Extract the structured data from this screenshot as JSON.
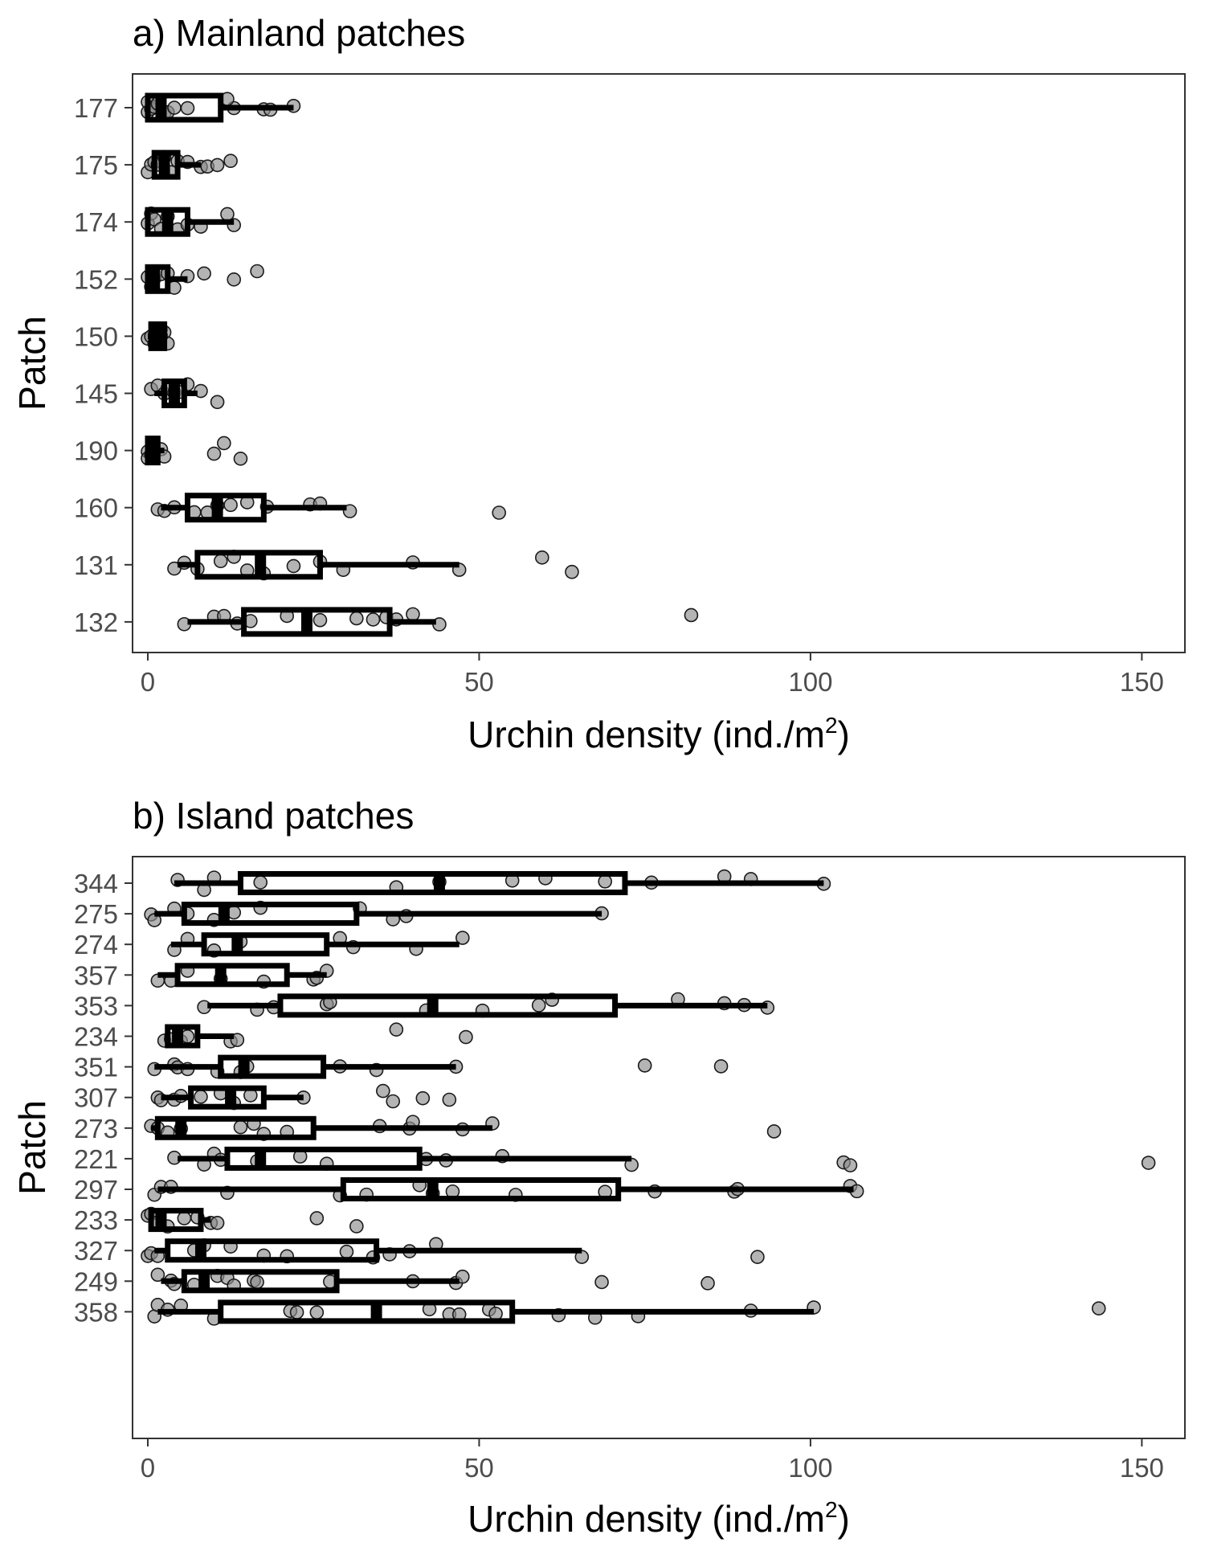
{
  "chart_data": [
    {
      "type": "boxplot",
      "title": "a) Mainland patches",
      "xlabel": "Urchin density (ind./m",
      "xlabel_sup": "2",
      "xlabel_end": ")",
      "ylabel": "Patch",
      "xlim": [
        -2.3,
        156.5
      ],
      "xticks": [
        0,
        50,
        100,
        150
      ],
      "grid": false,
      "categories": [
        "177",
        "175",
        "174",
        "152",
        "150",
        "145",
        "190",
        "160",
        "131",
        "132"
      ],
      "boxes": [
        {
          "patch": "177",
          "whisker_low": 0,
          "q1": 0,
          "median": 2,
          "q3": 11,
          "whisker_high": 22
        },
        {
          "patch": "175",
          "whisker_low": 0.5,
          "q1": 1,
          "median": 2.5,
          "q3": 4.5,
          "whisker_high": 8
        },
        {
          "patch": "174",
          "whisker_low": 0,
          "q1": 0,
          "median": 3,
          "q3": 6,
          "whisker_high": 13
        },
        {
          "patch": "152",
          "whisker_low": 0,
          "q1": 0,
          "median": 1,
          "q3": 3,
          "whisker_high": 6
        },
        {
          "patch": "150",
          "whisker_low": 0,
          "q1": 0.5,
          "median": 1.5,
          "q3": 2.5,
          "whisker_high": 3
        },
        {
          "patch": "145",
          "whisker_low": 1,
          "q1": 2.5,
          "median": 4,
          "q3": 5.5,
          "whisker_high": 7.5
        },
        {
          "patch": "190",
          "whisker_low": 0,
          "q1": 0,
          "median": 0.5,
          "q3": 1.5,
          "whisker_high": 2.5
        },
        {
          "patch": "160",
          "whisker_low": 2,
          "q1": 6,
          "median": 10.5,
          "q3": 17.5,
          "whisker_high": 30
        },
        {
          "patch": "131",
          "whisker_low": 4.5,
          "q1": 7.5,
          "median": 17,
          "q3": 26,
          "whisker_high": 47
        },
        {
          "patch": "132",
          "whisker_low": 6,
          "q1": 14.5,
          "median": 24,
          "q3": 36.5,
          "whisker_high": 43.5
        }
      ],
      "points": [
        [
          0,
          0,
          0.5,
          1,
          1.5,
          2.5,
          3,
          4,
          6,
          13,
          12,
          17.5,
          18.5,
          22
        ],
        [
          0,
          0.5,
          1,
          1.5,
          2.5,
          3.5,
          4.5,
          6,
          8,
          9,
          10.5,
          12.5
        ],
        [
          0,
          0.5,
          1,
          2,
          3,
          4.5,
          6,
          8,
          12,
          13
        ],
        [
          0,
          0.5,
          1,
          2,
          3,
          4,
          6,
          8.5,
          13,
          16.5
        ],
        [
          0,
          0.5,
          1,
          1.5,
          2,
          2.5,
          3
        ],
        [
          0.5,
          1.5,
          2.5,
          3,
          4,
          5,
          6,
          8,
          10.5
        ],
        [
          0,
          0,
          0.5,
          1,
          2,
          2.5,
          10,
          11.5,
          14
        ],
        [
          1.5,
          2.5,
          4,
          7,
          9,
          10.5,
          12.5,
          15,
          18,
          24.5,
          26,
          30.5,
          53
        ],
        [
          4,
          5.5,
          7.5,
          11,
          13,
          15,
          17.5,
          22,
          26,
          29.5,
          40,
          47,
          59.5,
          64
        ],
        [
          5.5,
          10,
          11.5,
          13.5,
          15.5,
          21,
          26,
          31.5,
          34,
          36,
          37.5,
          40,
          44,
          82
        ]
      ]
    },
    {
      "type": "boxplot",
      "title": "b) Island patches",
      "xlabel": "Urchin density (ind./m",
      "xlabel_sup": "2",
      "xlabel_end": ")",
      "ylabel": "Patch",
      "xlim": [
        -2.3,
        156.5
      ],
      "xticks": [
        0,
        50,
        100,
        150
      ],
      "grid": false,
      "categories": [
        "344",
        "275",
        "274",
        "357",
        "353",
        "234",
        "351",
        "307",
        "273",
        "221",
        "297",
        "233",
        "327",
        "249",
        "358"
      ],
      "boxes": [
        {
          "patch": "344",
          "whisker_low": 4,
          "q1": 14,
          "median": 44,
          "q3": 72,
          "whisker_high": 102
        },
        {
          "patch": "275",
          "whisker_low": 1,
          "q1": 5.5,
          "median": 11.5,
          "q3": 31.5,
          "whisker_high": 68.5
        },
        {
          "patch": "274",
          "whisker_low": 3.5,
          "q1": 8.5,
          "median": 13.5,
          "q3": 27,
          "whisker_high": 47
        },
        {
          "patch": "357",
          "whisker_low": 1.5,
          "q1": 4.5,
          "median": 11,
          "q3": 21,
          "whisker_high": 27
        },
        {
          "patch": "353",
          "whisker_low": 9,
          "q1": 20,
          "median": 43,
          "q3": 70.5,
          "whisker_high": 93.5
        },
        {
          "patch": "234",
          "whisker_low": 2.5,
          "q1": 3,
          "median": 4.5,
          "q3": 7.5,
          "whisker_high": 13
        },
        {
          "patch": "351",
          "whisker_low": 1,
          "q1": 11,
          "median": 14.5,
          "q3": 26.5,
          "whisker_high": 46.5
        },
        {
          "patch": "307",
          "whisker_low": 2,
          "q1": 6.5,
          "median": 12.5,
          "q3": 17.5,
          "whisker_high": 23.5
        },
        {
          "patch": "273",
          "whisker_low": 0.5,
          "q1": 1.5,
          "median": 5,
          "q3": 25,
          "whisker_high": 52
        },
        {
          "patch": "221",
          "whisker_low": 4.5,
          "q1": 12,
          "median": 17,
          "q3": 41,
          "whisker_high": 73
        },
        {
          "patch": "297",
          "whisker_low": 1.5,
          "q1": 29.5,
          "median": 43,
          "q3": 71,
          "whisker_high": 106.5
        },
        {
          "patch": "233",
          "whisker_low": 0.5,
          "q1": 0.5,
          "median": 2,
          "q3": 8,
          "whisker_high": 9.5
        },
        {
          "patch": "327",
          "whisker_low": 1,
          "q1": 3,
          "median": 8,
          "q3": 34.5,
          "whisker_high": 65.5
        },
        {
          "patch": "249",
          "whisker_low": 2,
          "q1": 5.5,
          "median": 8.5,
          "q3": 28.5,
          "whisker_high": 47
        },
        {
          "patch": "358",
          "whisker_low": 1.5,
          "q1": 11,
          "median": 34.5,
          "q3": 55,
          "whisker_high": 100.5
        }
      ],
      "points": [
        [
          4.5,
          8.5,
          10,
          17,
          37.5,
          44,
          55,
          60,
          69,
          76,
          87,
          91,
          102
        ],
        [
          0.5,
          1,
          4,
          6,
          10,
          13,
          17,
          32,
          37,
          39,
          68.5
        ],
        [
          4,
          6,
          10,
          14,
          29,
          31,
          40.5,
          47.5
        ],
        [
          1.5,
          3.5,
          6,
          11,
          17.5,
          25,
          25.5,
          27
        ],
        [
          8.5,
          16.5,
          19,
          27,
          27.5,
          42,
          50.5,
          59,
          61,
          80,
          87,
          90,
          93.5
        ],
        [
          2.5,
          3.5,
          5,
          6,
          12.5,
          13.5,
          37.5,
          48
        ],
        [
          1,
          4,
          4.5,
          6,
          10.5,
          14,
          15,
          29,
          34.5,
          46.5,
          75,
          86.5
        ],
        [
          1.5,
          2,
          4,
          5,
          8,
          11,
          13,
          15.5,
          23.5,
          35.5,
          37,
          41.5,
          45.5
        ],
        [
          0.5,
          1.5,
          3,
          5,
          14,
          16,
          17.5,
          21,
          35,
          39.5,
          40,
          47.5,
          52,
          94.5
        ],
        [
          4,
          8.5,
          10,
          11,
          16.5,
          23,
          27,
          42,
          45,
          53.5,
          73,
          105,
          106,
          151
        ],
        [
          1,
          2,
          3.5,
          12,
          29,
          33,
          41,
          43,
          46,
          55.5,
          69,
          76.5,
          88.5,
          89,
          106,
          107
        ],
        [
          0,
          0.5,
          1.5,
          3,
          5.5,
          7.5,
          9.5,
          10.5,
          25.5,
          31.5
        ],
        [
          0,
          0.5,
          1.5,
          7,
          8.5,
          12.5,
          17.5,
          21,
          30,
          34,
          36.5,
          39.5,
          43.5,
          65.5,
          92
        ],
        [
          1.5,
          3.5,
          4,
          7,
          10.5,
          12,
          13,
          16,
          16.5,
          27.5,
          40,
          46.5,
          47.5,
          68.5,
          84.5
        ],
        [
          1,
          1.5,
          3,
          5,
          10,
          21.5,
          22.5,
          25.5,
          42.5,
          45.5,
          47,
          51.5,
          52.5,
          62,
          67.5,
          74,
          91,
          100.5,
          143.5
        ]
      ]
    }
  ]
}
